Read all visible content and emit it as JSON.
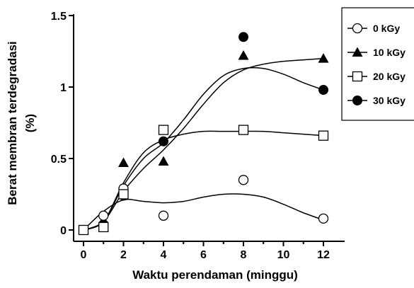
{
  "chart_data": {
    "type": "scatter",
    "xlabel": "Waktu perendaman (minggu)",
    "ylabel_line1": "Berat membran terdegradasi",
    "ylabel_line2": "(%)",
    "xlim": [
      0,
      12
    ],
    "ylim": [
      0,
      1.5
    ],
    "x_ticks": [
      0,
      2,
      4,
      6,
      8,
      10,
      12
    ],
    "x_minor_ticks": [
      1,
      3,
      5,
      7,
      9,
      11
    ],
    "y_ticks": [
      0,
      0.5,
      1,
      1.5
    ],
    "y_tick_labels": [
      "0",
      "0.5",
      "1",
      "1.5"
    ],
    "grid": false,
    "legend_position": "top-right",
    "series": [
      {
        "name": "0 kGy",
        "marker": "open-circle",
        "x": [
          0,
          1,
          2,
          4,
          8,
          12
        ],
        "y": [
          0.0,
          0.1,
          0.29,
          0.1,
          0.35,
          0.08
        ],
        "curve": [
          [
            0,
            0
          ],
          [
            1,
            0.13
          ],
          [
            2,
            0.21
          ],
          [
            3,
            0.2
          ],
          [
            4,
            0.19
          ],
          [
            5,
            0.2
          ],
          [
            6,
            0.23
          ],
          [
            7,
            0.25
          ],
          [
            8,
            0.25
          ],
          [
            9,
            0.23
          ],
          [
            10,
            0.18
          ],
          [
            11,
            0.12
          ],
          [
            12,
            0.07
          ]
        ]
      },
      {
        "name": "10 kGy",
        "marker": "filled-triangle",
        "x": [
          0,
          1,
          2,
          4,
          8,
          12
        ],
        "y": [
          0.0,
          0.02,
          0.47,
          0.48,
          1.22,
          1.2
        ],
        "curve": [
          [
            0,
            0
          ],
          [
            1,
            0.06
          ],
          [
            2,
            0.27
          ],
          [
            3,
            0.43
          ],
          [
            4,
            0.56
          ],
          [
            5,
            0.71
          ],
          [
            6,
            0.88
          ],
          [
            7,
            1.03
          ],
          [
            8,
            1.12
          ],
          [
            9,
            1.16
          ],
          [
            10,
            1.18
          ],
          [
            11,
            1.19
          ],
          [
            12,
            1.2
          ]
        ]
      },
      {
        "name": "20 kGy",
        "marker": "open-square",
        "x": [
          0,
          1,
          2,
          4,
          8,
          12
        ],
        "y": [
          0.0,
          0.02,
          0.25,
          0.7,
          0.7,
          0.66
        ],
        "curve": [
          [
            0,
            0
          ],
          [
            1,
            0.06
          ],
          [
            2,
            0.33
          ],
          [
            3,
            0.54
          ],
          [
            4,
            0.63
          ],
          [
            5,
            0.67
          ],
          [
            6,
            0.69
          ],
          [
            7,
            0.69
          ],
          [
            8,
            0.69
          ],
          [
            9,
            0.69
          ],
          [
            10,
            0.68
          ],
          [
            11,
            0.67
          ],
          [
            12,
            0.66
          ]
        ]
      },
      {
        "name": "30 kGy",
        "marker": "filled-circle",
        "x": [
          0,
          1,
          2,
          4,
          8,
          12
        ],
        "y": [
          0.0,
          0.04,
          0.24,
          0.62,
          1.35,
          0.98
        ],
        "curve": [
          [
            0,
            0
          ],
          [
            1,
            0.06
          ],
          [
            2,
            0.31
          ],
          [
            3,
            0.5
          ],
          [
            4,
            0.61
          ],
          [
            5,
            0.77
          ],
          [
            6,
            0.95
          ],
          [
            7,
            1.08
          ],
          [
            8,
            1.13
          ],
          [
            9,
            1.13
          ],
          [
            10,
            1.09
          ],
          [
            11,
            1.03
          ],
          [
            12,
            0.98
          ]
        ]
      }
    ]
  }
}
